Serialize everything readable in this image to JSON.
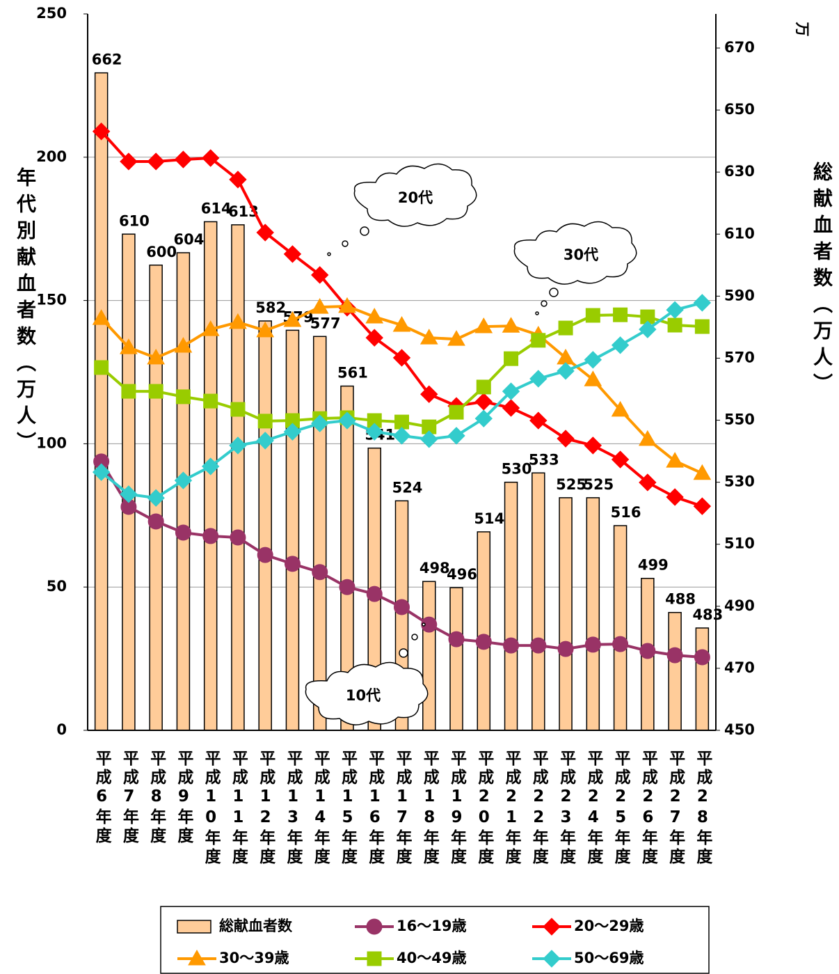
{
  "chart_data": {
    "type": "combo",
    "y_label": "年代別献血者数（万人）",
    "y2_label": "総献血者数（万人）",
    "y2_unit": "万",
    "annotations": [
      "20代",
      "30代",
      "10代"
    ],
    "categories": [
      "平成6年度",
      "平成7年度",
      "平成8年度",
      "平成9年度",
      "平成10年度",
      "平成11年度",
      "平成12年度",
      "平成13年度",
      "平成14年度",
      "平成15年度",
      "平成16年度",
      "平成17年度",
      "平成18年度",
      "平成19年度",
      "平成20年度",
      "平成21年度",
      "平成22年度",
      "平成23年度",
      "平成24年度",
      "平成25年度",
      "平成26年度",
      "平成27年度",
      "平成28年度"
    ],
    "ylim": [
      0,
      250
    ],
    "yticks": [
      0,
      50,
      100,
      150,
      200,
      250
    ],
    "y2lim": [
      450,
      681
    ],
    "y2ticks": [
      450,
      470,
      490,
      510,
      530,
      550,
      570,
      590,
      610,
      630,
      650,
      670
    ],
    "grid": true,
    "series": [
      {
        "name": "総献血者数",
        "type": "bar",
        "axis": "y2",
        "color": "#ffcc99",
        "values": [
          662,
          610,
          600,
          604,
          614,
          613,
          582,
          579,
          577,
          561,
          541,
          524,
          498,
          496,
          514,
          530,
          533,
          525,
          525,
          516,
          499,
          488,
          483
        ]
      },
      {
        "name": "16～19歳",
        "type": "line",
        "marker": "circle",
        "color": "#993366",
        "values": [
          93.8,
          78.0,
          72.9,
          69.0,
          67.8,
          67.3,
          61.2,
          58.1,
          55.2,
          50.0,
          47.6,
          43.0,
          36.9,
          31.8,
          30.9,
          29.6,
          29.6,
          28.4,
          29.9,
          30.1,
          27.7,
          26.2,
          25.5
        ]
      },
      {
        "name": "20～29歳",
        "type": "line",
        "marker": "diamond",
        "color": "#ff0000",
        "values": [
          209.0,
          198.5,
          198.5,
          199.2,
          199.7,
          192.2,
          173.7,
          166.2,
          158.9,
          147.5,
          137.0,
          130.0,
          117.3,
          113.2,
          114.7,
          112.5,
          108.1,
          101.8,
          99.4,
          94.5,
          86.5,
          81.4,
          78.2
        ]
      },
      {
        "name": "30～39歳",
        "type": "line",
        "marker": "triangle",
        "color": "#ff9900",
        "values": [
          143.8,
          133.6,
          130.0,
          134.1,
          139.9,
          142.4,
          139.5,
          143.1,
          147.7,
          148.0,
          144.3,
          141.4,
          137.0,
          136.5,
          140.9,
          141.1,
          138.0,
          130.0,
          122.4,
          111.8,
          101.6,
          94.0,
          89.7
        ]
      },
      {
        "name": "40～49歳",
        "type": "line",
        "marker": "square",
        "color": "#99cc00",
        "values": [
          126.6,
          118.3,
          118.3,
          116.4,
          114.9,
          112.0,
          107.9,
          108.1,
          108.8,
          109.1,
          108.1,
          107.6,
          105.9,
          111.0,
          119.8,
          129.7,
          136.1,
          140.4,
          144.8,
          145.0,
          144.3,
          141.4,
          140.9
        ]
      },
      {
        "name": "50～69歳",
        "type": "line",
        "marker": "diamond",
        "color": "#33cccc",
        "values": [
          90.1,
          82.4,
          81.1,
          87.2,
          92.1,
          99.4,
          101.1,
          104.2,
          107.1,
          108.1,
          104.2,
          102.8,
          101.6,
          102.8,
          108.8,
          118.3,
          122.7,
          125.4,
          129.3,
          134.4,
          139.9,
          146.7,
          149.2
        ]
      }
    ]
  }
}
